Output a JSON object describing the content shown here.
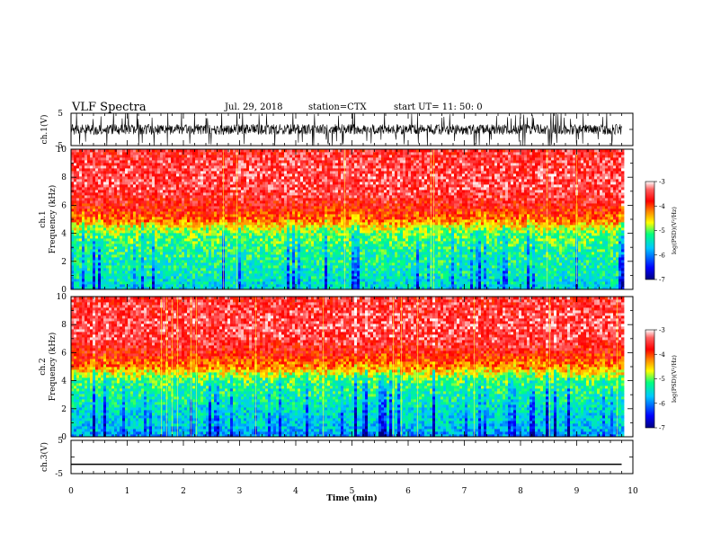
{
  "header": {
    "title": "VLF Spectra",
    "date": "Jul. 29, 2018",
    "station": "station=CTX",
    "start": "start UT= 11: 50: 0"
  },
  "chart_data": [
    {
      "panel": "ch1-waveform",
      "type": "line",
      "ylabel": "ch.1(V)",
      "ylim": [
        -5,
        5
      ],
      "yticks": [
        "5",
        "-5"
      ],
      "xlim": [
        0,
        10
      ],
      "data_extent_min": 9.8,
      "description_of_values": "noisy waveform roughly between -2 and 2 V with spikes saturating to ±5 V"
    },
    {
      "panel": "ch1-spectrogram",
      "type": "heatmap",
      "ylabel_line1": "ch.1",
      "ylabel_line2": "Frequency (kHz)",
      "ylim": [
        0,
        10
      ],
      "yticks": [
        "0",
        "2",
        "4",
        "6",
        "8",
        "10"
      ],
      "xlim": [
        0,
        10
      ],
      "data_extent_min": 9.8,
      "colorbar": {
        "label": "log(PSD)(V²/Hz)",
        "range": [
          -7,
          -3
        ],
        "ticks": [
          "-3",
          "-4",
          "-5",
          "-6",
          "-7"
        ],
        "colormap": [
          "#000080",
          "#0000ff",
          "#00c8ff",
          "#00ff80",
          "#ffff00",
          "#ff8000",
          "#ff0000",
          "#ffffff"
        ]
      },
      "profile_log_psd": {
        "freq_khz": [
          0,
          1,
          2,
          3,
          4,
          4.5,
          5,
          6,
          7,
          8,
          9,
          10
        ],
        "value": [
          -5.6,
          -5.4,
          -5.3,
          -5.2,
          -5.0,
          -4.6,
          -4.1,
          -3.7,
          -3.5,
          -3.45,
          -3.5,
          -3.6
        ]
      }
    },
    {
      "panel": "ch2-spectrogram",
      "type": "heatmap",
      "ylabel_line1": "ch.2",
      "ylabel_line2": "Frequency (kHz)",
      "ylim": [
        0,
        10
      ],
      "yticks": [
        "0",
        "2",
        "4",
        "6",
        "8",
        "10"
      ],
      "xlim": [
        0,
        10
      ],
      "data_extent_min": 9.8,
      "colorbar": {
        "label": "log(PSD)(V²/Hz)",
        "range": [
          -7,
          -3
        ],
        "ticks": [
          "-3",
          "-4",
          "-5",
          "-6",
          "-7"
        ],
        "colormap": [
          "#000080",
          "#0000ff",
          "#00c8ff",
          "#00ff80",
          "#ffff00",
          "#ff8000",
          "#ff0000",
          "#ffffff"
        ]
      },
      "profile_log_psd": {
        "freq_khz": [
          0,
          1,
          2,
          3,
          4,
          4.5,
          5,
          6,
          7,
          8,
          9,
          10
        ],
        "value": [
          -5.9,
          -5.6,
          -5.5,
          -5.3,
          -5.1,
          -4.7,
          -4.2,
          -3.75,
          -3.5,
          -3.45,
          -3.5,
          -3.6
        ]
      }
    },
    {
      "panel": "ch3-waveform",
      "type": "line",
      "ylabel": "ch.3(V)",
      "ylim": [
        -5,
        5
      ],
      "yticks": [
        "5",
        "-5"
      ],
      "xlim": [
        0,
        10
      ],
      "data_extent_min": 9.8,
      "constant_value": -2.2
    }
  ],
  "xaxis": {
    "label": "Time (min)",
    "ticks": [
      "0",
      "1",
      "2",
      "3",
      "4",
      "5",
      "6",
      "7",
      "8",
      "9",
      "10"
    ]
  }
}
